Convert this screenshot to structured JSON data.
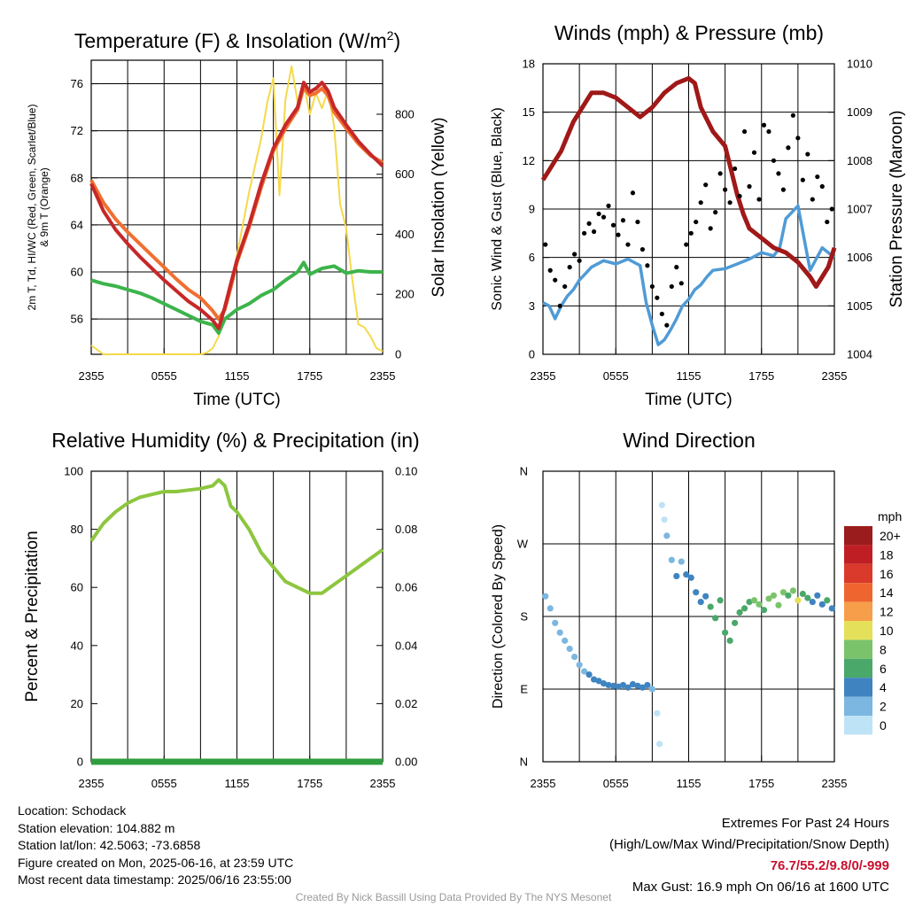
{
  "colors": {
    "temp": "#c62828",
    "dewpoint": "#3cb44b",
    "heat_index": "#f07030",
    "insolation": "#f5d94a",
    "wind": "#4f9bd6",
    "gust": "#000000",
    "pressure": "#a01818",
    "rh": "#8dc63f",
    "precip": "#2f9e3f",
    "extremes": "#c8102e",
    "credit": "#9a9a9a"
  },
  "chart_data": [
    {
      "id": "temperature",
      "type": "line",
      "title": "Temperature (F) & Insolation (W/m²)",
      "title_parts": [
        "Temperature (F) & Insolation (W/m",
        "2",
        ")"
      ],
      "xlabel": "Time (UTC)",
      "ylabel_left": [
        "2m T, Td, HI/WC (Red, Green, Scarlet/Blue)",
        "& 9m T (Orange)"
      ],
      "ylabel_right": "Solar Insolation (Yellow)",
      "x_ticks": [
        "2355",
        "0555",
        "1155",
        "1755",
        "2355"
      ],
      "ylim_left": [
        53,
        78
      ],
      "yticks_left": [
        56,
        60,
        64,
        68,
        72,
        76
      ],
      "ylim_right": [
        0,
        980
      ],
      "yticks_right": [
        0,
        200,
        400,
        600,
        800
      ],
      "x_range_hours": [
        0,
        24
      ],
      "series": [
        {
          "name": "2m T",
          "color": "#c62828",
          "x": [
            0,
            1,
            2,
            3,
            4,
            5,
            6,
            7,
            8,
            9,
            10,
            10.5,
            11,
            11.5,
            12,
            13,
            14,
            15,
            16,
            17,
            17.5,
            18,
            18.5,
            19,
            19.5,
            20,
            21,
            22,
            23,
            24
          ],
          "y": [
            67.5,
            65.2,
            63.6,
            62.4,
            61.3,
            60.3,
            59.3,
            58.4,
            57.5,
            56.8,
            55.9,
            55.2,
            57.0,
            59.0,
            61.0,
            64.0,
            67.5,
            70.5,
            72.5,
            74.0,
            76.1,
            75.3,
            75.6,
            76.1,
            75.4,
            74.0,
            72.5,
            71.1,
            70.0,
            69.0
          ]
        },
        {
          "name": "9m T",
          "color": "#f07030",
          "x": [
            0,
            1,
            2,
            3,
            4,
            5,
            6,
            7,
            8,
            9,
            10,
            10.5,
            11,
            11.5,
            12,
            13,
            14,
            15,
            16,
            17,
            17.5,
            18,
            18.5,
            19,
            19.5,
            20,
            21,
            22,
            23,
            24
          ],
          "y": [
            67.8,
            65.9,
            64.5,
            63.4,
            62.4,
            61.4,
            60.4,
            59.4,
            58.5,
            57.8,
            56.7,
            56.0,
            56.8,
            58.7,
            60.8,
            63.8,
            67.2,
            70.3,
            72.2,
            73.8,
            75.7,
            75.0,
            75.2,
            75.6,
            75.0,
            73.6,
            72.2,
            70.9,
            69.9,
            69.3
          ]
        },
        {
          "name": "Td",
          "color": "#3cb44b",
          "x": [
            0,
            1,
            2,
            3,
            4,
            5,
            6,
            7,
            8,
            9,
            10,
            10.5,
            11,
            12,
            13,
            14,
            15,
            16,
            17,
            17.5,
            18,
            19,
            20,
            21,
            22,
            23,
            24
          ],
          "y": [
            59.3,
            59.0,
            58.8,
            58.5,
            58.2,
            57.8,
            57.3,
            56.8,
            56.3,
            55.8,
            55.5,
            54.8,
            56.0,
            56.8,
            57.3,
            58.0,
            58.5,
            59.3,
            60.0,
            60.8,
            59.8,
            60.3,
            60.5,
            59.9,
            60.1,
            60.0,
            60.0
          ]
        },
        {
          "name": "Insolation",
          "color": "#f5d94a",
          "axis": "right",
          "x": [
            0,
            1,
            2,
            3,
            4,
            5,
            6,
            7,
            8,
            9,
            9.5,
            10,
            10.5,
            11,
            11.5,
            12,
            13,
            14,
            14.5,
            15,
            15.5,
            16,
            16.5,
            17,
            17.5,
            18,
            18.5,
            19,
            19.5,
            20,
            20.5,
            21,
            21.5,
            22,
            22.5,
            23,
            23.5,
            24
          ],
          "y": [
            30,
            0,
            0,
            0,
            0,
            0,
            0,
            0,
            0,
            0,
            5,
            20,
            60,
            150,
            230,
            330,
            540,
            720,
            840,
            920,
            530,
            850,
            960,
            840,
            900,
            800,
            870,
            820,
            880,
            760,
            500,
            420,
            250,
            100,
            90,
            60,
            20,
            10
          ]
        }
      ]
    },
    {
      "id": "wind",
      "type": "line",
      "title": "Winds (mph) & Pressure (mb)",
      "xlabel": "Time (UTC)",
      "ylabel_left": "Sonic Wind & Gust (Blue, Black)",
      "ylabel_right": "Station Pressure (Maroon)",
      "x_ticks": [
        "2355",
        "0555",
        "1155",
        "1755",
        "2355"
      ],
      "ylim_left": [
        0,
        18
      ],
      "yticks_left": [
        0,
        3,
        6,
        9,
        12,
        15,
        18
      ],
      "ylim_right": [
        1004,
        1010
      ],
      "yticks_right": [
        1004,
        1005,
        1006,
        1007,
        1008,
        1009,
        1010
      ],
      "x_range_hours": [
        0,
        24
      ],
      "series": [
        {
          "name": "Sonic Wind",
          "color": "#4f9bd6",
          "x": [
            0,
            0.5,
            1,
            1.5,
            2,
            2.5,
            3,
            3.5,
            4,
            5,
            6,
            7,
            8,
            8.5,
            9,
            9.5,
            10,
            10.5,
            11,
            11.5,
            12,
            12.5,
            13,
            13.5,
            14,
            15,
            16,
            17,
            18,
            19,
            19.5,
            20,
            21,
            22,
            23,
            24
          ],
          "y": [
            3.2,
            3.0,
            2.2,
            3.0,
            3.6,
            4.0,
            4.6,
            5.0,
            5.4,
            5.8,
            5.6,
            5.9,
            5.5,
            3.2,
            1.8,
            0.6,
            0.9,
            1.5,
            2.2,
            3.0,
            3.4,
            4.0,
            4.3,
            4.8,
            5.2,
            5.3,
            5.6,
            5.9,
            6.3,
            6.1,
            6.6,
            8.4,
            9.2,
            5.2,
            6.6,
            6.0
          ]
        },
        {
          "name": "Pressure",
          "color": "#a01818",
          "axis": "right",
          "x": [
            0,
            0.5,
            1,
            1.5,
            2,
            2.5,
            3,
            4,
            5,
            6,
            7,
            8,
            9,
            10,
            11,
            12,
            12.5,
            13,
            14,
            15,
            15.5,
            16,
            16.5,
            17,
            18,
            19,
            20,
            21,
            22,
            22.5,
            23,
            23.5,
            24
          ],
          "y": [
            1007.6,
            1007.8,
            1008.0,
            1008.2,
            1008.5,
            1008.8,
            1009.0,
            1009.4,
            1009.4,
            1009.3,
            1009.1,
            1008.9,
            1009.1,
            1009.4,
            1009.6,
            1009.7,
            1009.6,
            1009.1,
            1008.6,
            1008.3,
            1007.8,
            1007.3,
            1006.9,
            1006.6,
            1006.4,
            1006.2,
            1006.1,
            1005.9,
            1005.6,
            1005.4,
            1005.6,
            1005.8,
            1006.2
          ]
        },
        {
          "name": "Gust",
          "color": "#000000",
          "marker": "dot",
          "x": [
            0.2,
            0.6,
            1.0,
            1.4,
            1.8,
            2.2,
            2.6,
            3.0,
            3.4,
            3.8,
            4.2,
            4.6,
            5.0,
            5.4,
            5.8,
            6.2,
            6.6,
            7.0,
            7.4,
            7.8,
            8.2,
            8.6,
            9.0,
            9.4,
            9.8,
            10.2,
            10.6,
            11.0,
            11.4,
            11.8,
            12.2,
            12.6,
            13.0,
            13.4,
            13.8,
            14.2,
            14.6,
            15.0,
            15.4,
            15.8,
            16.2,
            16.6,
            17.0,
            17.4,
            17.8,
            18.2,
            18.6,
            19.0,
            19.4,
            19.8,
            20.2,
            20.6,
            21.0,
            21.4,
            21.8,
            22.2,
            22.6,
            23.0,
            23.4,
            23.8
          ],
          "y": [
            6.8,
            5.2,
            4.6,
            3.0,
            4.2,
            5.4,
            6.2,
            5.8,
            7.5,
            8.1,
            7.6,
            8.7,
            8.5,
            9.2,
            8.0,
            7.4,
            8.3,
            6.8,
            10.0,
            8.2,
            6.5,
            5.5,
            4.2,
            3.5,
            2.5,
            1.8,
            4.2,
            5.4,
            4.4,
            6.8,
            7.5,
            8.2,
            9.4,
            10.5,
            7.8,
            8.8,
            11.2,
            10.2,
            9.4,
            11.5,
            9.8,
            13.8,
            10.4,
            12.5,
            9.6,
            14.2,
            13.8,
            12.0,
            11.2,
            10.2,
            12.8,
            14.8,
            13.4,
            10.8,
            12.4,
            9.6,
            11.0,
            10.4,
            8.2,
            9.0
          ]
        }
      ]
    },
    {
      "id": "humidity",
      "type": "line",
      "title": "Relative Humidity (%) & Precipitation (in)",
      "xlabel": "",
      "ylabel_left": "Percent & Precipitation",
      "x_ticks": [
        "2355",
        "0555",
        "1155",
        "1755",
        "2355"
      ],
      "ylim_left": [
        0,
        100
      ],
      "yticks_left": [
        0,
        20,
        40,
        60,
        80,
        100
      ],
      "ylim_right": [
        0,
        0.1
      ],
      "yticks_right": [
        "0.00",
        "0.02",
        "0.04",
        "0.06",
        "0.08",
        "0.10"
      ],
      "x_range_hours": [
        0,
        24
      ],
      "series": [
        {
          "name": "RH",
          "color": "#8dc63f",
          "x": [
            0,
            1,
            2,
            3,
            4,
            5,
            6,
            7,
            8,
            9,
            10,
            10.5,
            11,
            11.5,
            12,
            13,
            14,
            15,
            16,
            17,
            18,
            19,
            20,
            21,
            22,
            23,
            24
          ],
          "y": [
            76,
            82,
            86,
            89,
            91,
            92,
            93,
            93,
            93.5,
            94,
            95,
            97,
            95,
            88,
            86,
            80,
            72,
            67,
            62,
            60,
            58,
            58,
            61,
            64,
            67,
            70,
            73
          ]
        },
        {
          "name": "Precipitation",
          "color": "#2f9e3f",
          "axis": "right",
          "x": [
            0,
            24
          ],
          "y": [
            0,
            0
          ]
        }
      ]
    },
    {
      "id": "direction",
      "type": "scatter",
      "title": "Wind Direction",
      "ylabel_left": "Direction (Colored By Speed)",
      "x_ticks": [
        "2355",
        "0555",
        "1155",
        "1755",
        "2355"
      ],
      "yticks_left": [
        "N",
        "E",
        "S",
        "W",
        "N"
      ],
      "ylim_left": [
        0,
        360
      ],
      "x_range_hours": [
        0,
        24
      ],
      "colorbar": {
        "unit": "mph",
        "labels": [
          "20+",
          "18",
          "16",
          "14",
          "12",
          "10",
          "8",
          "6",
          "4",
          "2",
          "0"
        ],
        "colors": [
          "#9b1c1c",
          "#bf1f24",
          "#d93a2b",
          "#ef6530",
          "#f79e4a",
          "#e5e05a",
          "#7ac36a",
          "#4aa86a",
          "#3f84c0",
          "#7bb7e0",
          "#bfe3f6"
        ]
      },
      "points": [
        [
          0.2,
          205,
          3
        ],
        [
          0.6,
          190,
          3
        ],
        [
          1.0,
          172,
          3
        ],
        [
          1.4,
          160,
          2
        ],
        [
          1.8,
          150,
          2
        ],
        [
          2.2,
          140,
          2
        ],
        [
          2.6,
          130,
          3
        ],
        [
          3.0,
          120,
          3
        ],
        [
          3.4,
          112,
          3
        ],
        [
          3.8,
          108,
          4
        ],
        [
          4.2,
          102,
          4
        ],
        [
          4.6,
          100,
          4
        ],
        [
          5.0,
          97,
          4
        ],
        [
          5.4,
          95,
          4
        ],
        [
          5.8,
          94,
          5
        ],
        [
          6.2,
          93,
          4
        ],
        [
          6.6,
          95,
          5
        ],
        [
          7.0,
          92,
          5
        ],
        [
          7.4,
          96,
          4
        ],
        [
          7.8,
          94,
          5
        ],
        [
          8.2,
          92,
          4
        ],
        [
          8.6,
          95,
          4
        ],
        [
          9.0,
          90,
          3
        ],
        [
          9.4,
          60,
          1
        ],
        [
          9.6,
          22,
          1
        ],
        [
          9.8,
          318,
          1
        ],
        [
          10.0,
          300,
          1
        ],
        [
          10.2,
          280,
          2
        ],
        [
          10.6,
          250,
          3
        ],
        [
          11.0,
          230,
          4
        ],
        [
          11.4,
          248,
          3
        ],
        [
          11.8,
          232,
          4
        ],
        [
          12.2,
          228,
          4
        ],
        [
          12.6,
          210,
          4
        ],
        [
          13.0,
          198,
          5
        ],
        [
          13.4,
          205,
          5
        ],
        [
          13.8,
          192,
          6
        ],
        [
          14.2,
          178,
          6
        ],
        [
          14.6,
          200,
          6
        ],
        [
          15.0,
          160,
          7
        ],
        [
          15.4,
          150,
          7
        ],
        [
          15.8,
          172,
          6
        ],
        [
          16.2,
          185,
          7
        ],
        [
          16.6,
          190,
          6
        ],
        [
          17.0,
          198,
          7
        ],
        [
          17.4,
          200,
          8
        ],
        [
          17.8,
          195,
          8
        ],
        [
          18.2,
          188,
          7
        ],
        [
          18.6,
          202,
          8
        ],
        [
          19.0,
          206,
          9
        ],
        [
          19.4,
          194,
          8
        ],
        [
          19.8,
          210,
          8
        ],
        [
          20.2,
          206,
          7
        ],
        [
          20.6,
          212,
          8
        ],
        [
          21.0,
          200,
          10
        ],
        [
          21.4,
          208,
          7
        ],
        [
          21.8,
          203,
          6
        ],
        [
          22.2,
          198,
          5
        ],
        [
          22.6,
          206,
          5
        ],
        [
          23.0,
          195,
          5
        ],
        [
          23.4,
          200,
          6
        ],
        [
          23.8,
          190,
          5
        ]
      ]
    }
  ],
  "info": {
    "location": "Location: Schodack",
    "elevation": "Station elevation: 104.882 m",
    "latlon": "Station lat/lon: 42.5063; -73.6858",
    "created": "Figure created on Mon, 2025-06-16, at 23:59 UTC",
    "recent": "Most recent data timestamp: 2025/06/16 23:55:00"
  },
  "extremes": {
    "title": "Extremes For Past 24 Hours",
    "subtitle": "(High/Low/Max Wind/Precipitation/Snow Depth)",
    "values": "76.7/55.2/9.8/0/-999",
    "max_gust": "Max Gust: 16.9 mph On 06/16 at 1600 UTC"
  },
  "credit": "Created By Nick Bassill Using Data Provided By The NYS Mesonet"
}
